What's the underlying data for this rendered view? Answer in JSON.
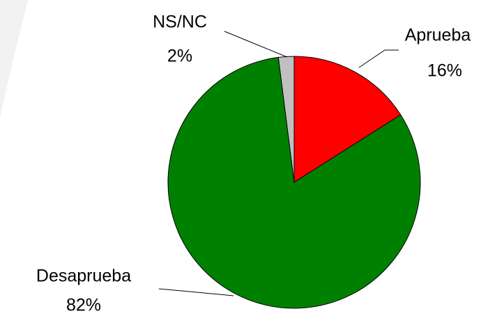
{
  "chart_data": {
    "type": "pie",
    "categories": [
      "Aprueba",
      "Desaprueba",
      "NS/NC"
    ],
    "values": [
      16,
      82,
      2
    ],
    "value_labels": [
      "16%",
      "82%",
      "2%"
    ],
    "colors": [
      "#ff0000",
      "#008000",
      "#c0c0c0"
    ]
  }
}
